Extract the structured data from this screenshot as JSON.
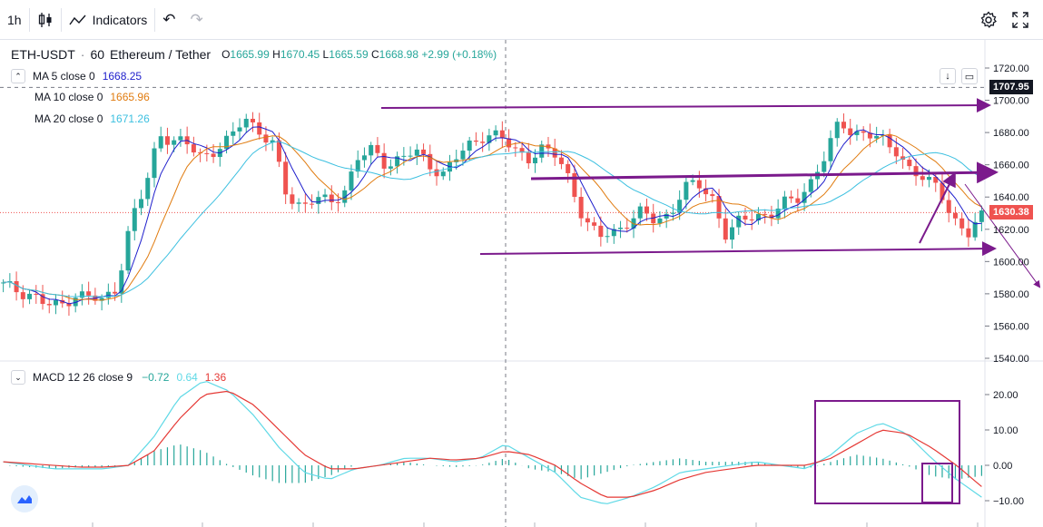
{
  "toolbar": {
    "interval": "1h",
    "indicators_label": "Indicators",
    "icons": [
      "candles-icon",
      "indicators-icon",
      "undo-icon",
      "redo-icon",
      "settings-icon",
      "fullscreen-icon"
    ]
  },
  "symbol": {
    "ticker": "ETH-USDT",
    "interval": "60",
    "name": "Ethereum / Tether",
    "open_label": "O",
    "open": "1665.99",
    "high_label": "H",
    "high": "1670.45",
    "low_label": "L",
    "low": "1665.59",
    "close_label": "C",
    "close": "1668.98",
    "change": "+2.99 (+0.18%)"
  },
  "ma": [
    {
      "label": "MA 5 close 0",
      "value": "1668.25",
      "color": "#1e1ecc"
    },
    {
      "label": "MA 10 close 0",
      "value": "1665.96",
      "color": "#e07b0f"
    },
    {
      "label": "MA 20 close 0",
      "value": "1671.26",
      "color": "#3dc0e0"
    }
  ],
  "macd": {
    "label": "MACD 12 26 close 9",
    "histogram": "−0.72",
    "macd": "0.64",
    "signal": "1.36",
    "hist_color": "#26a69a",
    "macd_color": "#5fd9e6",
    "signal_color": "#e53935"
  },
  "price_tags": {
    "crosshair": "1707.95",
    "last": "1630.38",
    "last_color": "#ef5350"
  },
  "colors": {
    "up": "#26a69a",
    "down": "#ef5350",
    "annotation": "#7b1a8c"
  },
  "chart_data": {
    "type": "candlestick",
    "title": "ETH-USDT · 60 Ethereum / Tether",
    "y_axis": {
      "ticks": [
        "1720.00",
        "1700.00",
        "1680.00",
        "1660.00",
        "1640.00",
        "1620.00",
        "1600.00",
        "1580.00",
        "1560.00",
        "1540.00"
      ],
      "range": [
        1540,
        1722
      ]
    },
    "close_path": [
      1585,
      1582,
      1580,
      1573,
      1572,
      1580,
      1578,
      1575,
      1585,
      1625,
      1645,
      1680,
      1675,
      1672,
      1665,
      1670,
      1675,
      1690,
      1682,
      1672,
      1640,
      1635,
      1640,
      1635,
      1643,
      1665,
      1668,
      1660,
      1665,
      1668,
      1660,
      1655,
      1665,
      1672,
      1680,
      1678,
      1668,
      1665,
      1670,
      1665,
      1650,
      1625,
      1615,
      1618,
      1625,
      1630,
      1625,
      1630,
      1645,
      1648,
      1640,
      1615,
      1625,
      1630,
      1628,
      1635,
      1640,
      1650,
      1665,
      1688,
      1680,
      1678,
      1675,
      1670,
      1655,
      1650,
      1648,
      1625,
      1615,
      1630
    ],
    "macd_panel": {
      "y_ticks": [
        "20.00",
        "10.00",
        "0.00",
        "−10.00"
      ],
      "range": [
        -13,
        22
      ],
      "macd_line": [
        1,
        0,
        -1,
        -1,
        -1,
        0,
        8,
        19,
        24,
        21,
        14,
        5,
        -2,
        -4,
        -1,
        0,
        2,
        2,
        1,
        2,
        6,
        2,
        -2,
        -9,
        -11,
        -9,
        -6,
        -2,
        -1,
        0,
        1,
        0,
        -1,
        3,
        9,
        12,
        9,
        2,
        -4,
        -9
      ],
      "signal_line": [
        1,
        0.5,
        0,
        -0.5,
        -0.5,
        0,
        4,
        13,
        20,
        21,
        17,
        10,
        3,
        -1,
        -1,
        0,
        1,
        2,
        1.5,
        2,
        4,
        3,
        0,
        -5,
        -9,
        -9,
        -7,
        -4,
        -2,
        -1,
        0,
        0,
        0,
        2,
        6,
        10,
        9,
        5,
        0,
        -6
      ]
    }
  }
}
